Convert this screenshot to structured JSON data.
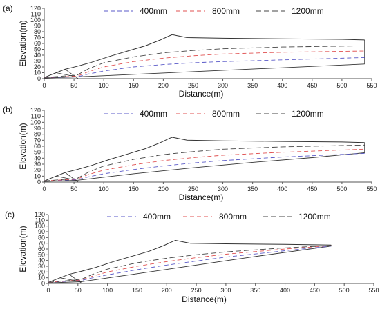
{
  "colors": {
    "axis": "#555555",
    "terrain": "#333333",
    "series": [
      "#5a5ac8",
      "#e05050",
      "#444444"
    ]
  },
  "chart_data": [
    {
      "type": "line",
      "panel_label": "(a)",
      "xlabel": "Distance(m)",
      "ylabel": "Elevation(m)",
      "xlim": [
        0,
        550
      ],
      "ylim": [
        0,
        120
      ],
      "xticks": [
        0,
        50,
        100,
        150,
        200,
        250,
        300,
        350,
        400,
        450,
        500,
        550
      ],
      "yticks": [
        0,
        10,
        20,
        30,
        40,
        50,
        60,
        70,
        80,
        90,
        100,
        110,
        120
      ],
      "grid": false,
      "legend_position": "top",
      "terrain": {
        "top": [
          [
            0,
            2
          ],
          [
            20,
            10
          ],
          [
            35,
            16
          ],
          [
            55,
            21
          ],
          [
            80,
            28
          ],
          [
            110,
            38
          ],
          [
            140,
            47
          ],
          [
            170,
            56
          ],
          [
            195,
            66
          ],
          [
            210,
            73
          ],
          [
            215,
            75
          ],
          [
            225,
            73
          ],
          [
            240,
            70
          ],
          [
            300,
            69
          ],
          [
            400,
            68
          ],
          [
            500,
            67
          ],
          [
            538,
            66
          ]
        ],
        "bottom": [
          [
            0,
            1
          ],
          [
            55,
            3
          ],
          [
            538,
            25
          ]
        ],
        "extra": [
          [
            [
              20,
              10
            ],
            [
              55,
              3
            ]
          ],
          [
            [
              35,
              16
            ],
            [
              57,
              0
            ]
          ],
          [
            [
              538,
              66
            ],
            [
              538,
              25
            ]
          ]
        ]
      },
      "series": [
        {
          "name": "400mm",
          "values": [
            [
              0,
              2
            ],
            [
              55,
              3
            ],
            [
              75,
              8
            ],
            [
              100,
              13
            ],
            [
              150,
              20
            ],
            [
              200,
              24
            ],
            [
              250,
              27
            ],
            [
              300,
              29
            ],
            [
              400,
              32
            ],
            [
              538,
              36
            ]
          ]
        },
        {
          "name": "800mm",
          "values": [
            [
              0,
              2
            ],
            [
              55,
              4
            ],
            [
              75,
              12
            ],
            [
              100,
              20
            ],
            [
              150,
              29
            ],
            [
              200,
              35
            ],
            [
              250,
              39
            ],
            [
              300,
              42
            ],
            [
              400,
              45
            ],
            [
              538,
              47
            ]
          ]
        },
        {
          "name": "1200mm",
          "values": [
            [
              0,
              2
            ],
            [
              55,
              6
            ],
            [
              75,
              17
            ],
            [
              100,
              27
            ],
            [
              150,
              37
            ],
            [
              200,
              44
            ],
            [
              250,
              48
            ],
            [
              300,
              51
            ],
            [
              400,
              54
            ],
            [
              538,
              56
            ]
          ]
        }
      ]
    },
    {
      "type": "line",
      "panel_label": "(b)",
      "xlabel": "Distance(m)",
      "ylabel": "Elevation(m)",
      "xlim": [
        0,
        550
      ],
      "ylim": [
        0,
        120
      ],
      "xticks": [
        0,
        50,
        100,
        150,
        200,
        250,
        300,
        350,
        400,
        450,
        500,
        550
      ],
      "yticks": [
        0,
        10,
        20,
        30,
        40,
        50,
        60,
        70,
        80,
        90,
        100,
        110,
        120
      ],
      "grid": false,
      "legend_position": "top",
      "terrain": {
        "top": [
          [
            0,
            2
          ],
          [
            20,
            10
          ],
          [
            35,
            16
          ],
          [
            55,
            21
          ],
          [
            80,
            28
          ],
          [
            110,
            38
          ],
          [
            140,
            47
          ],
          [
            170,
            56
          ],
          [
            195,
            66
          ],
          [
            210,
            73
          ],
          [
            215,
            75
          ],
          [
            225,
            73
          ],
          [
            240,
            70
          ],
          [
            300,
            69
          ],
          [
            400,
            68
          ],
          [
            500,
            67
          ],
          [
            538,
            66
          ]
        ],
        "bottom": [
          [
            0,
            1
          ],
          [
            55,
            3
          ],
          [
            150,
            14
          ],
          [
            250,
            24
          ],
          [
            350,
            33
          ],
          [
            450,
            41
          ],
          [
            538,
            49
          ]
        ],
        "extra": [
          [
            [
              20,
              10
            ],
            [
              55,
              3
            ]
          ],
          [
            [
              35,
              16
            ],
            [
              57,
              0
            ]
          ],
          [
            [
              538,
              66
            ],
            [
              538,
              49
            ]
          ]
        ]
      },
      "series": [
        {
          "name": "400mm",
          "values": [
            [
              0,
              2
            ],
            [
              55,
              4
            ],
            [
              75,
              9
            ],
            [
              100,
              14
            ],
            [
              150,
              21
            ],
            [
              200,
              27
            ],
            [
              250,
              32
            ],
            [
              300,
              36
            ],
            [
              400,
              42
            ],
            [
              538,
              48
            ]
          ]
        },
        {
          "name": "800mm",
          "values": [
            [
              0,
              2
            ],
            [
              55,
              5
            ],
            [
              75,
              13
            ],
            [
              100,
              20
            ],
            [
              150,
              29
            ],
            [
              200,
              36
            ],
            [
              250,
              41
            ],
            [
              300,
              45
            ],
            [
              400,
              50
            ],
            [
              538,
              55
            ]
          ]
        },
        {
          "name": "1200mm",
          "values": [
            [
              0,
              2
            ],
            [
              55,
              6
            ],
            [
              75,
              17
            ],
            [
              100,
              27
            ],
            [
              150,
              38
            ],
            [
              200,
              46
            ],
            [
              250,
              51
            ],
            [
              300,
              55
            ],
            [
              400,
              59
            ],
            [
              538,
              62
            ]
          ]
        }
      ]
    },
    {
      "type": "line",
      "panel_label": "(c)",
      "xlabel": "Distance(m)",
      "ylabel": "Elevation(m)",
      "xlim": [
        0,
        550
      ],
      "ylim": [
        0,
        120
      ],
      "xticks": [
        0,
        50,
        100,
        150,
        200,
        250,
        300,
        350,
        400,
        450,
        500,
        550
      ],
      "yticks": [
        0,
        10,
        20,
        30,
        40,
        50,
        60,
        70,
        80,
        90,
        100,
        110,
        120
      ],
      "grid": false,
      "legend_position": "top",
      "terrain": {
        "top": [
          [
            0,
            2
          ],
          [
            20,
            10
          ],
          [
            35,
            16
          ],
          [
            55,
            21
          ],
          [
            80,
            28
          ],
          [
            110,
            38
          ],
          [
            140,
            47
          ],
          [
            170,
            56
          ],
          [
            195,
            66
          ],
          [
            210,
            73
          ],
          [
            215,
            75
          ],
          [
            225,
            73
          ],
          [
            240,
            70
          ],
          [
            300,
            69
          ],
          [
            400,
            68
          ],
          [
            478,
            67
          ]
        ],
        "bottom": [
          [
            0,
            1
          ],
          [
            55,
            3
          ],
          [
            150,
            17
          ],
          [
            250,
            32
          ],
          [
            350,
            47
          ],
          [
            478,
            65
          ]
        ],
        "extra": [
          [
            [
              20,
              10
            ],
            [
              55,
              3
            ]
          ],
          [
            [
              35,
              16
            ],
            [
              57,
              0
            ]
          ],
          [
            [
              478,
              67
            ],
            [
              478,
              65
            ]
          ]
        ]
      },
      "series": [
        {
          "name": "400mm",
          "values": [
            [
              0,
              2
            ],
            [
              55,
              5
            ],
            [
              75,
              10
            ],
            [
              100,
              15
            ],
            [
              150,
              24
            ],
            [
              200,
              32
            ],
            [
              250,
              39
            ],
            [
              300,
              46
            ],
            [
              400,
              57
            ],
            [
              478,
              65
            ]
          ]
        },
        {
          "name": "800mm",
          "values": [
            [
              0,
              2
            ],
            [
              55,
              6
            ],
            [
              75,
              13
            ],
            [
              100,
              20
            ],
            [
              150,
              30
            ],
            [
              200,
              38
            ],
            [
              250,
              45
            ],
            [
              300,
              51
            ],
            [
              400,
              60
            ],
            [
              478,
              66
            ]
          ]
        },
        {
          "name": "1200mm",
          "values": [
            [
              0,
              2
            ],
            [
              55,
              7
            ],
            [
              75,
              16
            ],
            [
              100,
              25
            ],
            [
              150,
              36
            ],
            [
              200,
              44
            ],
            [
              250,
              50
            ],
            [
              300,
              55
            ],
            [
              400,
              62
            ],
            [
              478,
              66
            ]
          ]
        }
      ]
    }
  ]
}
